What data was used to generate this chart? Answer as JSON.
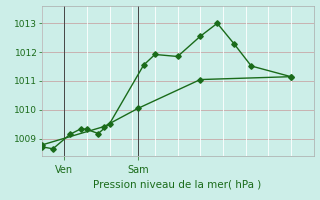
{
  "title": "Pression niveau de la mer( hPa )",
  "background_color": "#cceee8",
  "line_color": "#1a6b1a",
  "grid_color_h": "#c8a8a8",
  "grid_color_v": "#ffffff",
  "ylim": [
    1008.4,
    1013.6
  ],
  "yticks": [
    1009,
    1010,
    1011,
    1012,
    1013
  ],
  "xlim": [
    0,
    24
  ],
  "ven_x": 2.0,
  "sam_x": 8.5,
  "num_vgrid": 12,
  "line1_x": [
    0.0,
    1.0,
    2.5,
    3.5,
    4.0,
    5.0,
    6.0,
    9.0,
    10.0,
    12.0,
    14.0,
    15.5,
    17.0,
    18.5,
    22.0
  ],
  "line1_y": [
    1008.72,
    1008.65,
    1009.15,
    1009.35,
    1009.32,
    1009.18,
    1009.52,
    1011.55,
    1011.92,
    1011.85,
    1012.55,
    1013.0,
    1012.28,
    1011.52,
    1011.15
  ],
  "line2_x": [
    0.0,
    5.5,
    8.5,
    14.0,
    22.0
  ],
  "line2_y": [
    1008.78,
    1009.42,
    1010.05,
    1011.05,
    1011.15
  ],
  "marker": "D",
  "markersize": 2.8,
  "linewidth": 1.0,
  "ytick_fontsize": 6.5,
  "xtick_fontsize": 7,
  "title_fontsize": 7.5
}
